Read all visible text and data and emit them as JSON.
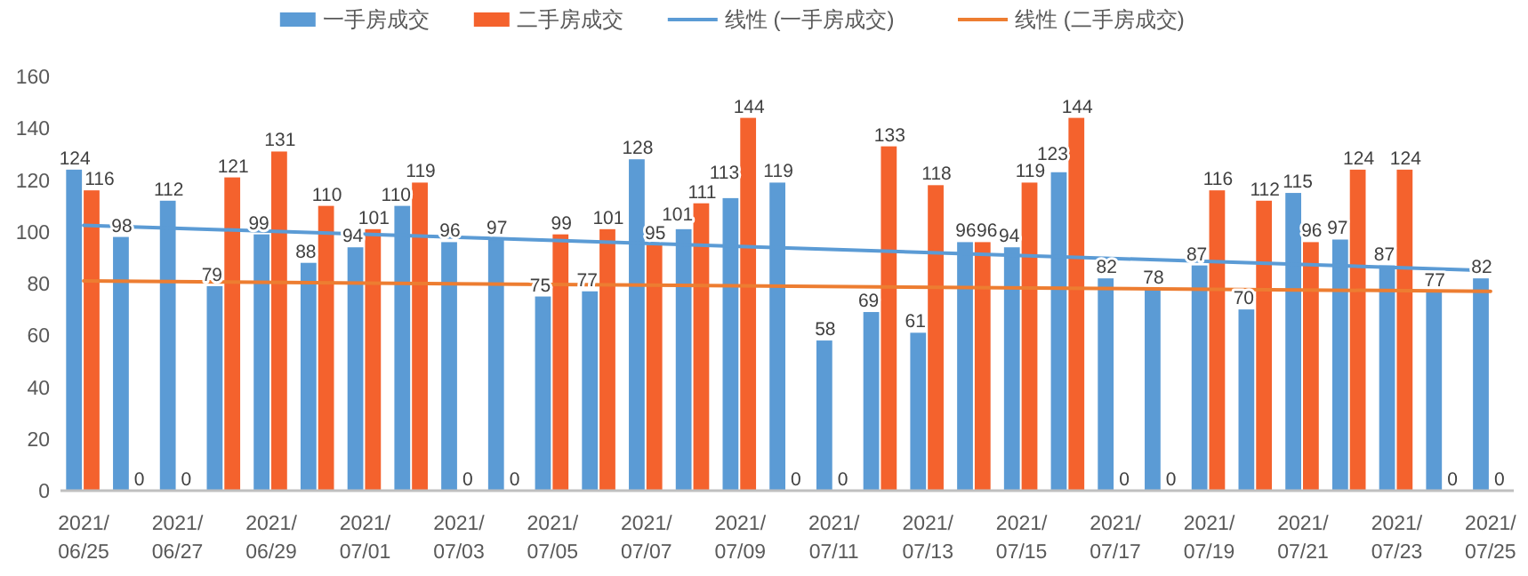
{
  "chart_data": {
    "type": "bar",
    "categories": [
      "2021/06/25",
      null,
      "2021/06/27",
      null,
      "2021/06/29",
      null,
      "2021/07/01",
      null,
      "2021/07/03",
      null,
      "2021/07/05",
      null,
      "2021/07/07",
      null,
      "2021/07/09",
      null,
      "2021/07/11",
      null,
      "2021/07/13",
      null,
      "2021/07/15",
      null,
      "2021/07/17",
      null,
      "2021/07/19",
      null,
      "2021/07/21",
      null,
      "2021/07/23",
      null,
      "2021/07/25"
    ],
    "series": [
      {
        "name": "一手房成交",
        "color": "#5b9bd5",
        "values": [
          124,
          98,
          112,
          79,
          99,
          88,
          94,
          110,
          96,
          97,
          75,
          77,
          128,
          101,
          113,
          119,
          58,
          69,
          61,
          96,
          94,
          123,
          82,
          78,
          87,
          70,
          115,
          97,
          87,
          77,
          82
        ],
        "value_labels": [
          "124",
          "98",
          "112",
          "79",
          "99",
          "88",
          "94",
          "110",
          "96",
          "97",
          "75",
          "77",
          "128",
          "101",
          "113",
          "119",
          "58",
          "69",
          "61",
          "96",
          "94",
          "123",
          "82",
          "78",
          "87",
          "70",
          "115",
          "97",
          "87",
          "77",
          "82"
        ]
      },
      {
        "name": "二手房成交",
        "color": "#f4622d",
        "values": [
          116,
          0,
          0,
          121,
          131,
          110,
          101,
          119,
          0,
          0,
          99,
          101,
          95,
          111,
          144,
          0,
          0,
          133,
          118,
          96,
          119,
          144,
          0,
          0,
          116,
          112,
          96,
          124,
          124,
          0,
          0
        ],
        "value_labels": [
          "116",
          "0",
          "0",
          "121",
          "131",
          "110",
          "101",
          "119",
          "0",
          "0",
          "99",
          "101",
          "95",
          "111",
          "144",
          "0",
          "0",
          "133",
          "118",
          "96",
          "119",
          "144",
          "0",
          "0",
          "116",
          "112",
          "96",
          "124",
          "124",
          "0",
          "0"
        ]
      },
      {
        "name": "线性 (一手房成交)",
        "type": "line",
        "color": "#5b9bd5",
        "x": [
          "2021/06/25",
          "2021/07/25"
        ],
        "values": [
          102.5,
          85
        ]
      },
      {
        "name": "线性 (二手房成交)",
        "type": "line",
        "color": "#ed7d31",
        "x": [
          "2021/06/25",
          "2021/07/25"
        ],
        "values": [
          81,
          77
        ]
      }
    ],
    "ylim": [
      0,
      160
    ],
    "yticks": [
      0,
      20,
      40,
      60,
      80,
      100,
      120,
      140,
      160
    ],
    "legend": "top"
  }
}
